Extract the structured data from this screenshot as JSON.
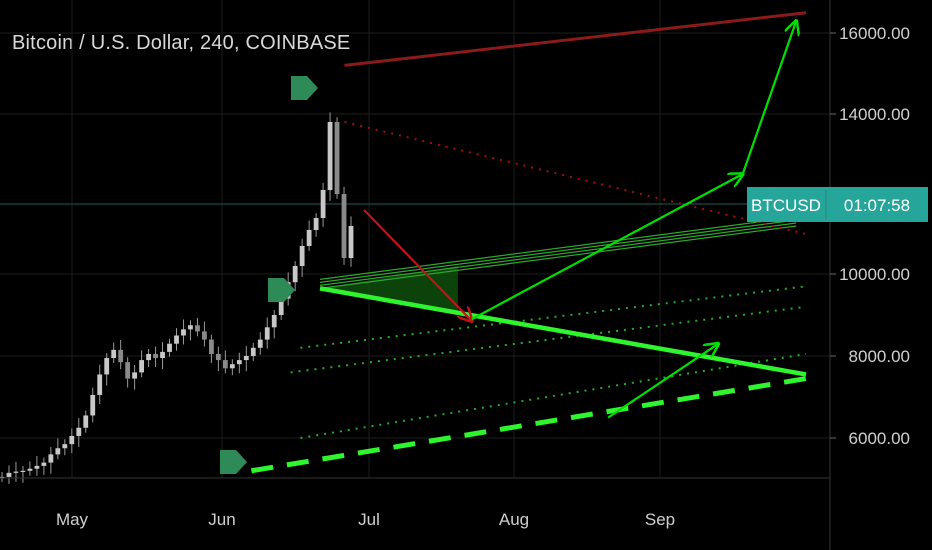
{
  "header": {
    "title": "Bitcoin / U.S. Dollar, 240, COINBASE"
  },
  "price_badge": {
    "symbol": "BTCUSD",
    "countdown": "01:07:58"
  },
  "colors": {
    "background": "#000000",
    "grid": "#1c1c1c",
    "candle_up": "#c8c8c8",
    "candle_down": "#8a8a8a",
    "up_arrow": "#00e000",
    "down_arrow": "#c0141a",
    "resistance": "#8b1a1a",
    "support": "#2ef52e",
    "channel_fill": "#0f5a0f",
    "marker": "#2e8b57",
    "badge": "#26a69a",
    "hline": "#1f5a5a"
  },
  "chart_data": {
    "type": "line",
    "series": [
      {
        "values": [
          5050,
          5150,
          5180,
          5200,
          5250,
          5320,
          5400,
          5600,
          5750,
          5850,
          6050,
          6250,
          6550,
          7050,
          7550,
          7950,
          8150,
          7850,
          7450,
          7600,
          7900,
          8050,
          7950,
          8100,
          8300,
          8500,
          8650,
          8750,
          8600,
          8400,
          8050,
          7900,
          7700,
          7800,
          7900,
          8000,
          8200,
          8400,
          8700,
          9000,
          9400,
          9800,
          10200,
          10700,
          11100,
          11400,
          12100,
          13800,
          12000,
          10400,
          11200
        ]
      }
    ],
    "x_ticks": [
      "May",
      "Jun",
      "Jul",
      "Aug",
      "Sep"
    ],
    "y_ticks": [
      "16000.00",
      "14000.00",
      "10000.00",
      "8000.00",
      "6000.00"
    ],
    "ylim": [
      5000,
      16500
    ],
    "current_price": 11200,
    "annotations": {
      "resistance_line": [
        {
          "x": "Jun 26",
          "y": 15200
        },
        {
          "x": "Oct 01",
          "y": 16500
        }
      ],
      "dotted_resistance": [
        {
          "x": "Jun 26",
          "y": 13800
        },
        {
          "x": "Oct 01",
          "y": 11000
        }
      ],
      "support_line": [
        {
          "x": "Jun 21",
          "y": 9650
        },
        {
          "x": "Oct 01",
          "y": 7550
        }
      ],
      "dashed_support": [
        {
          "x": "Jun 07",
          "y": 5200
        },
        {
          "x": "Oct 01",
          "y": 7450
        }
      ],
      "channel_top": [
        {
          "x": "Jun 21",
          "y": 9650
        },
        {
          "x": "Sep 29",
          "y": 11200
        }
      ],
      "dotted_channels": [
        [
          {
            "x": "Jun 17",
            "y": 8200
          },
          {
            "x": "Oct 01",
            "y": 9700
          }
        ],
        [
          {
            "x": "Jun 15",
            "y": 7600
          },
          {
            "x": "Oct 01",
            "y": 9200
          }
        ],
        [
          {
            "x": "Jun 17",
            "y": 6000
          },
          {
            "x": "Oct 01",
            "y": 8050
          }
        ]
      ],
      "arrows": [
        {
          "color": "red",
          "from": {
            "x": "Jun 30",
            "y": 11600
          },
          "to": {
            "x": "Jul 23",
            "y": 8850
          }
        },
        {
          "color": "green",
          "from": {
            "x": "Jul 23",
            "y": 8900
          },
          "to": {
            "x": "Sep 18",
            "y": 12500
          }
        },
        {
          "color": "green",
          "from": {
            "x": "Sep 18",
            "y": 12500
          },
          "to": {
            "x": "Sep 29",
            "y": 16300
          }
        },
        {
          "color": "green",
          "from": {
            "x": "Aug 21",
            "y": 6500
          },
          "to": {
            "x": "Sep 13",
            "y": 8300
          }
        }
      ]
    }
  }
}
